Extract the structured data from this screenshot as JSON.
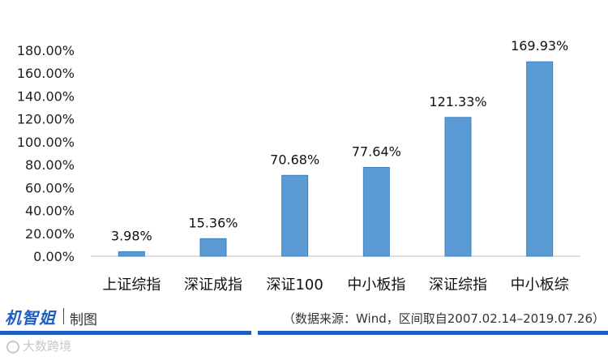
{
  "chart_data": {
    "type": "bar",
    "categories": [
      "上证综指",
      "深证成指",
      "深证100",
      "中小板指",
      "深证综指",
      "中小板综"
    ],
    "values": [
      3.98,
      15.36,
      70.68,
      77.64,
      121.33,
      169.93
    ],
    "value_labels": [
      "3.98%",
      "15.36%",
      "70.68%",
      "77.64%",
      "121.33%",
      "169.93%"
    ],
    "y_ticks": [
      "0.00%",
      "20.00%",
      "40.00%",
      "60.00%",
      "80.00%",
      "100.00%",
      "120.00%",
      "140.00%",
      "160.00%",
      "180.00%"
    ],
    "ylim": [
      0,
      180
    ],
    "grid": false,
    "bar_color": "#5b9bd5"
  },
  "footer": {
    "brand": "机智姐",
    "made_by": "制图",
    "source": "（数据来源：Wind，区间取自2007.02.14–2019.07.26）",
    "accent_color": "#1f5fbf"
  },
  "watermark": {
    "icon": "watermark-logo-icon",
    "text": "大数跨境"
  }
}
